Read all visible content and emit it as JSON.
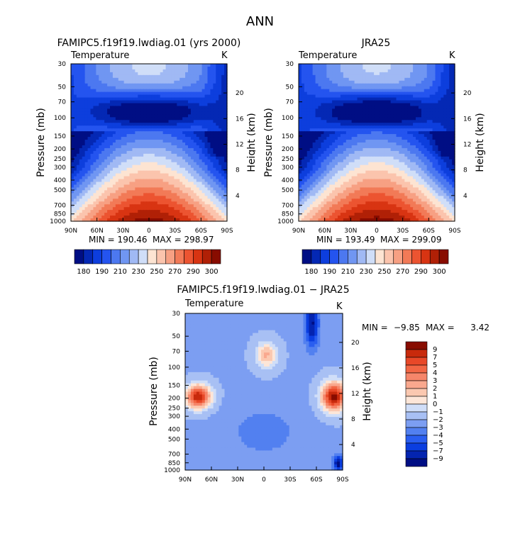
{
  "title": "ANN",
  "chart_data": [
    {
      "type": "heatmap",
      "title": "FAMIPC5.f19f19.lwdiag.01 (yrs 2000)",
      "subtitle": "Temperature",
      "units": "K",
      "xlabel": "",
      "ylabel": "Pressure (mb)",
      "ylabel_right": "Height (km)",
      "x_ticks": [
        "90N",
        "60N",
        "30N",
        "0",
        "30S",
        "60S",
        "90S"
      ],
      "y_ticks": [
        "30",
        "50",
        "70",
        "100",
        "150",
        "200",
        "250",
        "300",
        "400",
        "500",
        "700",
        "850",
        "1000"
      ],
      "y_ticks_right": [
        "20",
        "16",
        "12",
        "8",
        "4"
      ],
      "min_label": "MIN = 190.46",
      "max_label": "MAX = 298.97",
      "colorbar": [
        "180",
        "190",
        "210",
        "230",
        "250",
        "270",
        "290",
        "300"
      ],
      "colors": [
        "#000e84",
        "#0428b4",
        "#0d3edd",
        "#2454ef",
        "#4c78f0",
        "#7096f2",
        "#a0b9f4",
        "#d0def8",
        "#fde4d2",
        "#fbc4ad",
        "#f7a083",
        "#f27a57",
        "#ec5431",
        "#d83412",
        "#b02006",
        "#880c00"
      ],
      "temp_range": [
        190.46,
        298.97
      ]
    },
    {
      "type": "heatmap",
      "title": "JRA25",
      "subtitle": "Temperature",
      "units": "K",
      "xlabel": "",
      "ylabel": "Pressure (mb)",
      "ylabel_right": "Height (km)",
      "x_ticks": [
        "90N",
        "60N",
        "30N",
        "0",
        "30S",
        "60S",
        "90S"
      ],
      "y_ticks": [
        "30",
        "50",
        "70",
        "100",
        "150",
        "200",
        "250",
        "300",
        "400",
        "500",
        "700",
        "850",
        "1000"
      ],
      "y_ticks_right": [
        "20",
        "16",
        "12",
        "8",
        "4"
      ],
      "min_label": "MIN = 193.49",
      "max_label": "MAX = 299.09",
      "colorbar": [
        "180",
        "190",
        "210",
        "230",
        "250",
        "270",
        "290",
        "300"
      ],
      "colors": [
        "#000e84",
        "#0428b4",
        "#0d3edd",
        "#2454ef",
        "#4c78f0",
        "#7096f2",
        "#a0b9f4",
        "#d0def8",
        "#fde4d2",
        "#fbc4ad",
        "#f7a083",
        "#f27a57",
        "#ec5431",
        "#d83412",
        "#b02006",
        "#880c00"
      ],
      "temp_range": [
        193.49,
        299.09
      ]
    },
    {
      "type": "heatmap",
      "title": "FAMIPC5.f19f19.lwdiag.01 − JRA25",
      "subtitle": "Temperature",
      "units": "K",
      "xlabel": "",
      "ylabel": "Pressure (mb)",
      "ylabel_right": "Height (km)",
      "x_ticks": [
        "90N",
        "60N",
        "30N",
        "0",
        "30S",
        "60S",
        "90S"
      ],
      "y_ticks": [
        "30",
        "50",
        "70",
        "100",
        "150",
        "200",
        "250",
        "300",
        "400",
        "500",
        "700",
        "850",
        "1000"
      ],
      "y_ticks_right": [
        "20",
        "16",
        "12",
        "8",
        "4"
      ],
      "min_label": "MIN =",
      "min_value": "−9.85",
      "max_label": "MAX =",
      "max_value": "3.42",
      "colorbar": [
        "9",
        "7",
        "5",
        "4",
        "3",
        "2",
        "1",
        "0",
        "−1",
        "−2",
        "−3",
        "−4",
        "−5",
        "−7",
        "−9"
      ],
      "colors": [
        "#880c00",
        "#c82a0c",
        "#e84828",
        "#f26644",
        "#f6866a",
        "#f9a88e",
        "#fbc8b0",
        "#fde6d8",
        "#d0def8",
        "#a8c0f4",
        "#7c9ef2",
        "#5280f0",
        "#2a5ef0",
        "#0b3ee0",
        "#0424b0",
        "#000e84"
      ],
      "diff_range": [
        -9.85,
        3.42
      ]
    }
  ]
}
